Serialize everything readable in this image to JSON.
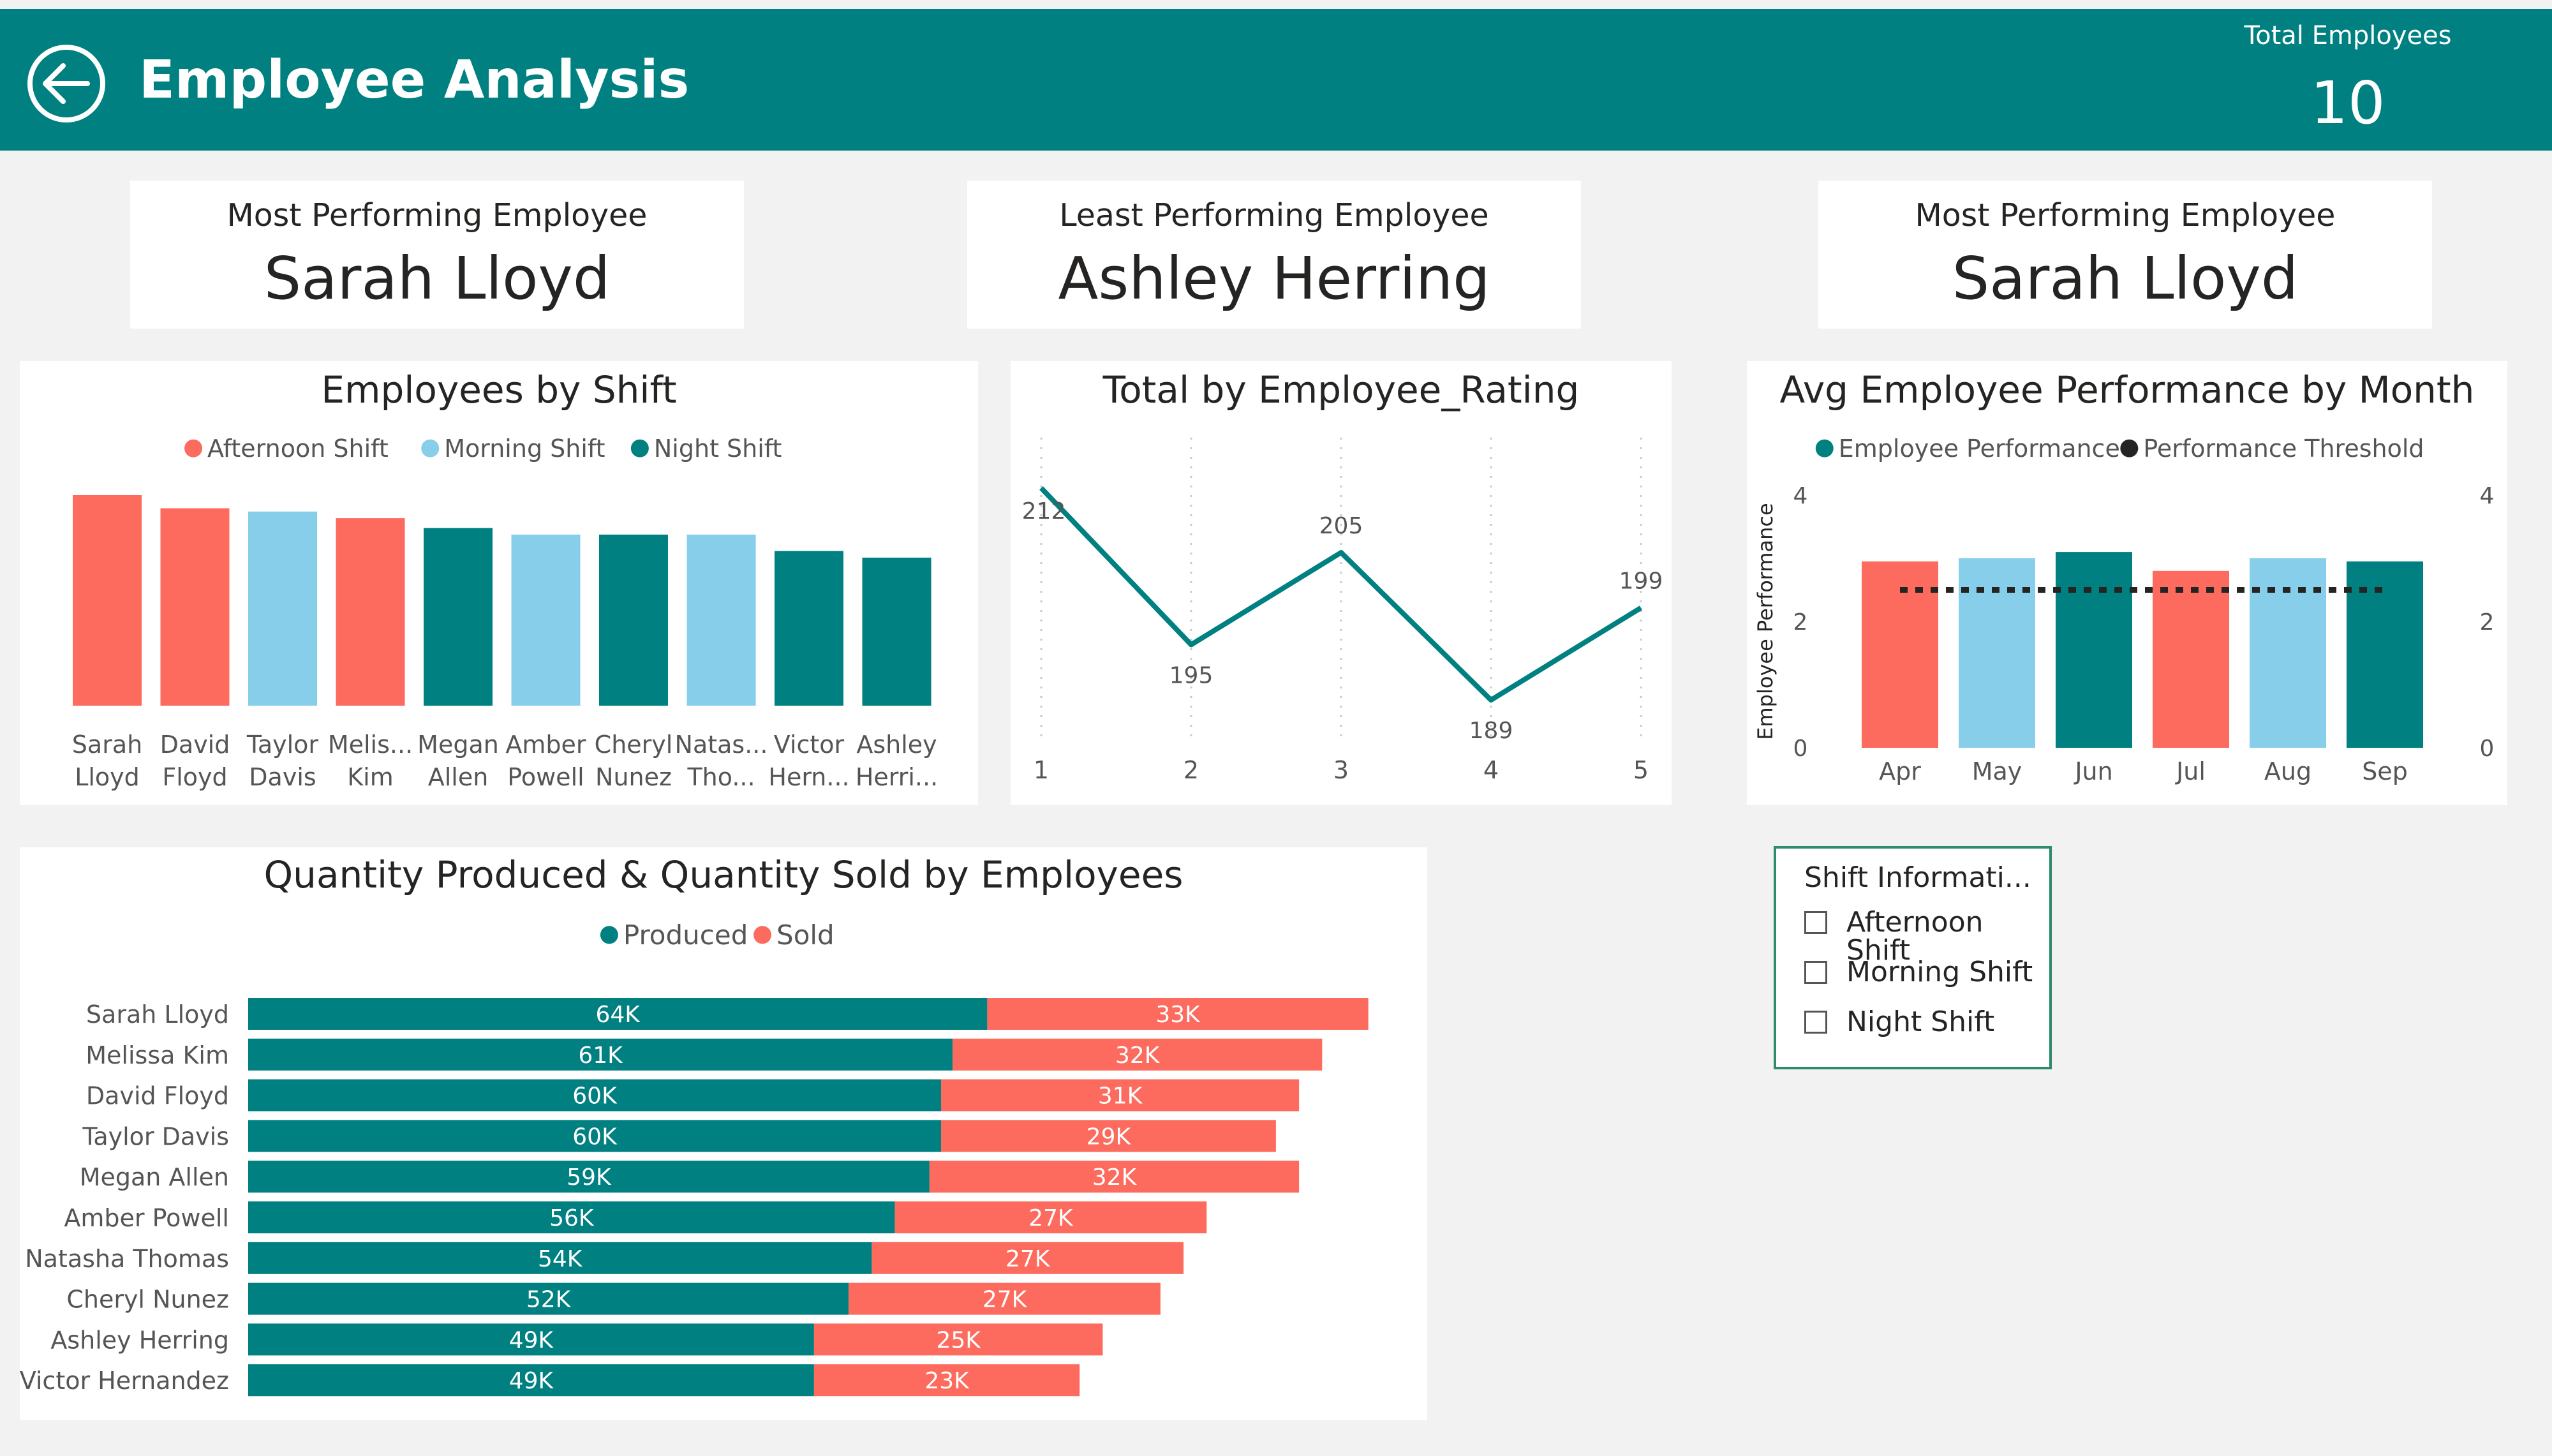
{
  "header": {
    "title": "Employee Analysis",
    "kpi_label": "Total Employees",
    "kpi_value": "10"
  },
  "cards": [
    {
      "title": "Most Performing Employee",
      "value": "Sarah Lloyd"
    },
    {
      "title": "Least Performing Employee",
      "value": "Ashley Herring"
    },
    {
      "title": "Most Performing Employee",
      "value": "Sarah Lloyd"
    }
  ],
  "slicer": {
    "title": "Shift Informati...",
    "options": [
      "Afternoon Shift",
      "Morning Shift",
      "Night Shift"
    ]
  },
  "colors": {
    "teal": "#008080",
    "coral": "#fd6a5e",
    "lightblue": "#87ceeb",
    "threshold": "#252423",
    "header": "#008080"
  },
  "chart_data": [
    {
      "type": "bar",
      "title": "Employees by Shift",
      "legend": [
        {
          "name": "Afternoon Shift",
          "color": "#fd6a5e"
        },
        {
          "name": "Morning Shift",
          "color": "#87ceeb"
        },
        {
          "name": "Night Shift",
          "color": "#008080"
        }
      ],
      "legend_position": "top-center",
      "categories": [
        [
          "Sarah",
          "Lloyd"
        ],
        [
          "David",
          "Floyd"
        ],
        [
          "Taylor",
          "Davis"
        ],
        [
          "Melis...",
          "Kim"
        ],
        [
          "Megan",
          "Allen"
        ],
        [
          "Amber",
          "Powell"
        ],
        [
          "Cheryl",
          "Nunez"
        ],
        [
          "Natas...",
          "Tho..."
        ],
        [
          "Victor",
          "Hern..."
        ],
        [
          "Ashley",
          "Herri..."
        ]
      ],
      "shifts": [
        "Afternoon Shift",
        "Afternoon Shift",
        "Morning Shift",
        "Afternoon Shift",
        "Night Shift",
        "Morning Shift",
        "Night Shift",
        "Morning Shift",
        "Night Shift",
        "Night Shift"
      ],
      "values": [
        3.2,
        3.0,
        2.95,
        2.85,
        2.7,
        2.6,
        2.6,
        2.6,
        2.35,
        2.25
      ],
      "ylim": [
        0,
        4
      ],
      "axis_visible": false
    },
    {
      "type": "line",
      "title": "Total by Employee_Rating",
      "x": [
        1,
        2,
        3,
        4,
        5
      ],
      "values": [
        212,
        195,
        205,
        189,
        199
      ],
      "ylim": [
        187,
        214
      ],
      "color": "#008080",
      "grid": true
    },
    {
      "type": "bar",
      "title": "Avg Employee Performance by Month",
      "legend": [
        {
          "name": "Employee Performance",
          "color": "#008080"
        },
        {
          "name": "Performance Threshold",
          "color": "#252423"
        }
      ],
      "legend_position": "top-center",
      "categories": [
        "Apr",
        "May",
        "Jun",
        "Jul",
        "Aug",
        "Sep"
      ],
      "bar_colors": [
        "#fd6a5e",
        "#87ceeb",
        "#008080",
        "#fd6a5e",
        "#87ceeb",
        "#008080"
      ],
      "series": [
        {
          "name": "Employee Performance",
          "values": [
            2.95,
            3.0,
            3.1,
            2.8,
            3.0,
            2.95
          ]
        },
        {
          "name": "Performance Threshold",
          "values": [
            2.5,
            2.5,
            2.5,
            2.5,
            2.5,
            2.5
          ]
        }
      ],
      "ylabel": "Employee Performance",
      "ylim": [
        0,
        4
      ],
      "yticks": [
        0,
        2,
        4
      ],
      "secondary_yticks": [
        0,
        2,
        4
      ]
    },
    {
      "type": "bar",
      "orientation": "horizontal",
      "stacked": true,
      "title": "Quantity Produced & Quantity Sold by Employees",
      "legend": [
        {
          "name": "Produced",
          "color": "#008080"
        },
        {
          "name": "Sold",
          "color": "#fd6a5e"
        }
      ],
      "legend_position": "top-center",
      "categories": [
        "Sarah Lloyd",
        "Melissa Kim",
        "David Floyd",
        "Taylor Davis",
        "Megan Allen",
        "Amber Powell",
        "Natasha Thomas",
        "Cheryl Nunez",
        "Ashley Herring",
        "Victor Hernandez"
      ],
      "series": [
        {
          "name": "Produced",
          "values": [
            64,
            61,
            60,
            60,
            59,
            56,
            54,
            52,
            49,
            49
          ],
          "labels": [
            "64K",
            "61K",
            "60K",
            "60K",
            "59K",
            "56K",
            "54K",
            "52K",
            "49K",
            "49K"
          ]
        },
        {
          "name": "Sold",
          "values": [
            33,
            32,
            31,
            29,
            32,
            27,
            27,
            27,
            25,
            23
          ],
          "labels": [
            "33K",
            "32K",
            "31K",
            "29K",
            "32K",
            "27K",
            "27K",
            "27K",
            "25K",
            "23K"
          ]
        }
      ],
      "xlim": [
        0,
        100
      ],
      "unit": "K"
    }
  ]
}
